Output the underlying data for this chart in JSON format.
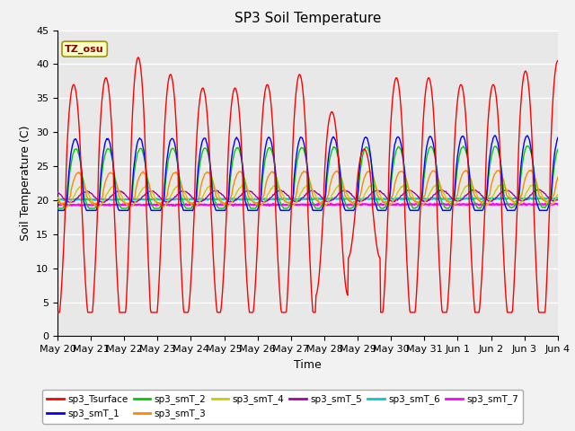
{
  "title": "SP3 Soil Temperature",
  "ylabel": "Soil Temperature (C)",
  "xlabel": "Time",
  "annotation": "TZ_osu",
  "ylim": [
    0,
    45
  ],
  "yticks": [
    0,
    5,
    10,
    15,
    20,
    25,
    30,
    35,
    40,
    45
  ],
  "x_labels": [
    "May 20",
    "May 21",
    "May 22",
    "May 23",
    "May 24",
    "May 25",
    "May 26",
    "May 27",
    "May 28",
    "May 29",
    "May 30",
    "May 31",
    "Jun 1",
    "Jun 2",
    "Jun 3",
    "Jun 4"
  ],
  "series_colors": {
    "sp3_Tsurface": "#FF0000",
    "sp3_smT_1": "#0000FF",
    "sp3_smT_2": "#00CC00",
    "sp3_smT_3": "#FF8800",
    "sp3_smT_4": "#CCCC00",
    "sp3_smT_5": "#AA00AA",
    "sp3_smT_6": "#00CCCC",
    "sp3_smT_7": "#FF00FF"
  },
  "background_color": "#E8E8E8",
  "grid_color": "#FFFFFF",
  "title_fontsize": 11,
  "axis_fontsize": 9,
  "n_days": 15.5,
  "base_surface": 19.5,
  "surface_min": 3.5,
  "smT1_base": 20.0,
  "smT1_amp": 9.0,
  "smT2_base": 20.5,
  "smT2_amp": 7.0,
  "smT3_base": 20.5,
  "smT3_amp": 3.5,
  "smT4_base": 20.5,
  "smT4_amp": 1.5,
  "smT5_base": 20.5,
  "smT5_amp": 0.8,
  "smT6_base": 20.1,
  "smT7_base": 19.3
}
